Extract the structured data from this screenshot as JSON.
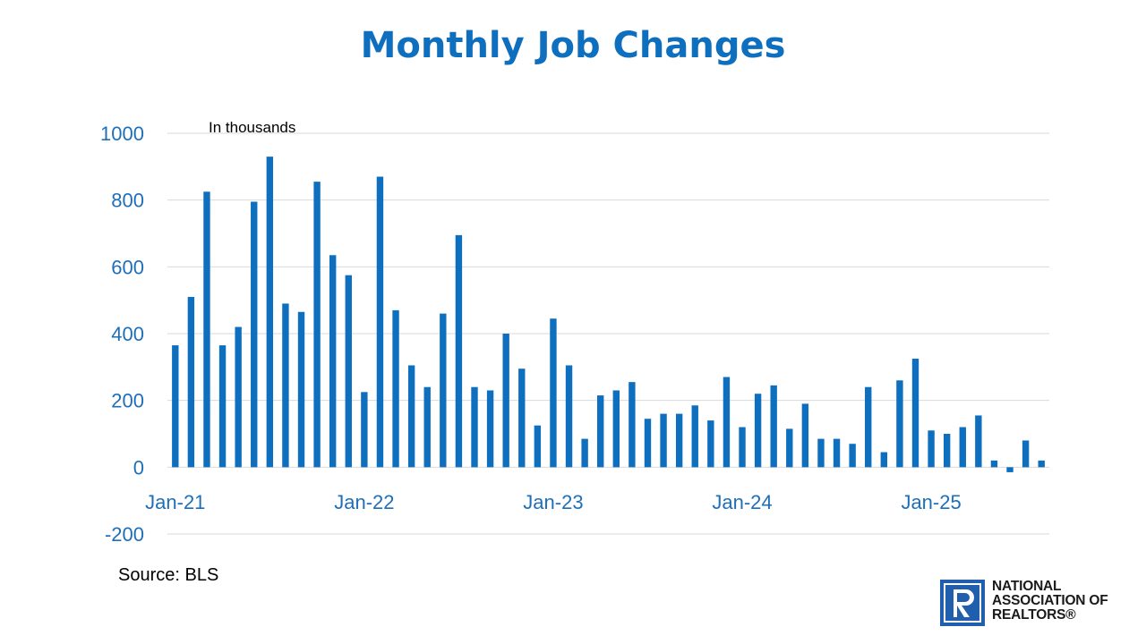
{
  "colors": {
    "bar": "#0f6fbf",
    "title": "#0f6fbf",
    "tick": "#1f6fb8",
    "grid": "#d9d9d9",
    "logo": "#1f5fae"
  },
  "logo": {
    "icon": "realtor-r-logo-icon",
    "lines": [
      "NATIONAL",
      "ASSOCIATION OF",
      "REALTORS®"
    ]
  },
  "chart_data": {
    "type": "bar",
    "title": "Monthly Job Changes",
    "units_note": "In thousands",
    "source": "Source: BLS",
    "xlabel": "",
    "ylabel": "",
    "ylim": [
      -200,
      1000
    ],
    "yticks": [
      -200,
      0,
      200,
      400,
      600,
      800,
      1000
    ],
    "grid": true,
    "legend": "none",
    "xtick_labels": [
      {
        "index": 0,
        "label": "Jan-21"
      },
      {
        "index": 12,
        "label": "Jan-22"
      },
      {
        "index": 24,
        "label": "Jan-23"
      },
      {
        "index": 36,
        "label": "Jan-24"
      },
      {
        "index": 48,
        "label": "Jan-25"
      }
    ],
    "categories": [
      "Jan-21",
      "Feb-21",
      "Mar-21",
      "Apr-21",
      "May-21",
      "Jun-21",
      "Jul-21",
      "Aug-21",
      "Sep-21",
      "Oct-21",
      "Nov-21",
      "Dec-21",
      "Jan-22",
      "Feb-22",
      "Mar-22",
      "Apr-22",
      "May-22",
      "Jun-22",
      "Jul-22",
      "Aug-22",
      "Sep-22",
      "Oct-22",
      "Nov-22",
      "Dec-22",
      "Jan-23",
      "Feb-23",
      "Mar-23",
      "Apr-23",
      "May-23",
      "Jun-23",
      "Jul-23",
      "Aug-23",
      "Sep-23",
      "Oct-23",
      "Nov-23",
      "Dec-23",
      "Jan-24",
      "Feb-24",
      "Mar-24",
      "Apr-24",
      "May-24",
      "Jun-24",
      "Jul-24",
      "Aug-24",
      "Sep-24",
      "Oct-24",
      "Nov-24",
      "Dec-24",
      "Jan-25",
      "Feb-25",
      "Mar-25",
      "Apr-25",
      "May-25",
      "Jun-25",
      "Jul-25",
      "Aug-25"
    ],
    "values": [
      365,
      510,
      825,
      365,
      420,
      795,
      930,
      490,
      465,
      855,
      635,
      575,
      225,
      870,
      470,
      305,
      240,
      460,
      695,
      240,
      230,
      400,
      295,
      125,
      445,
      305,
      85,
      215,
      230,
      255,
      145,
      160,
      160,
      185,
      140,
      270,
      120,
      220,
      245,
      115,
      190,
      85,
      85,
      70,
      240,
      45,
      260,
      325,
      110,
      100,
      120,
      155,
      20,
      -15,
      80,
      20
    ]
  }
}
